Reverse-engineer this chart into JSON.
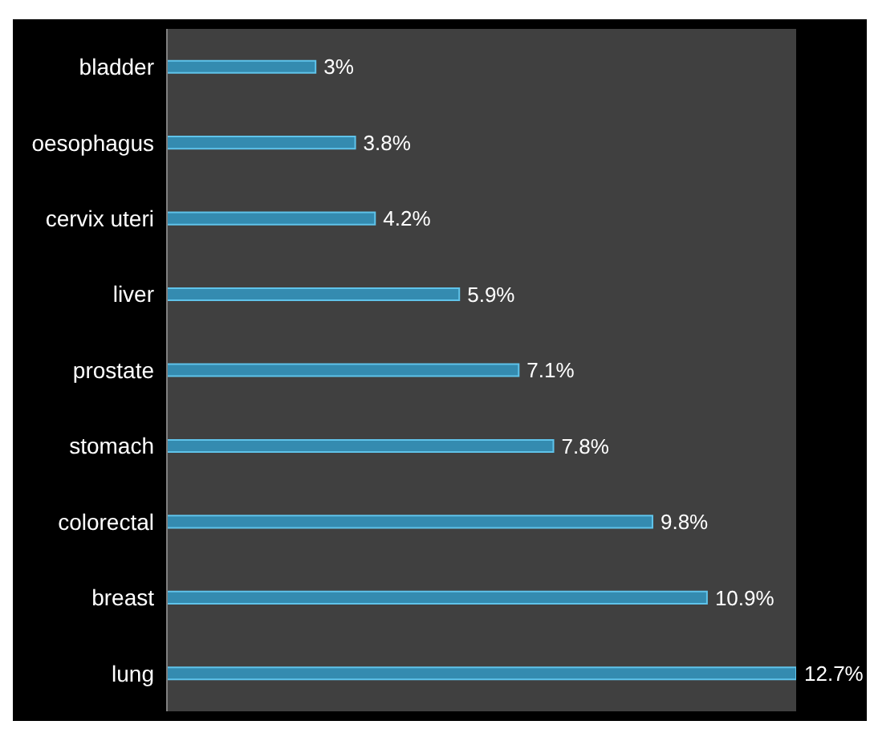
{
  "chart_data": {
    "type": "bar",
    "orientation": "horizontal",
    "categories": [
      "bladder",
      "oesophagus",
      "cervix uteri",
      "liver",
      "prostate",
      "stomach",
      "colorectal",
      "breast",
      "lung"
    ],
    "values": [
      3,
      3.8,
      4.2,
      5.9,
      7.1,
      7.8,
      9.8,
      10.9,
      12.7
    ],
    "value_labels": [
      "3%",
      "3.8%",
      "4.2%",
      "5.9%",
      "7.1%",
      "7.8%",
      "9.8%",
      "10.9%",
      "12.7%"
    ],
    "color": "#348bb0"
  }
}
